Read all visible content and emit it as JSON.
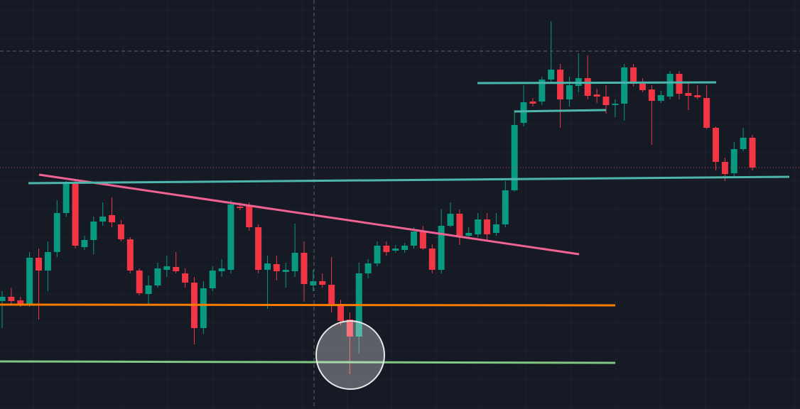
{
  "chart_data": {
    "type": "candlestick",
    "up_color": "#089981",
    "down_color": "#f23645",
    "ylim": [
      0,
      576
    ],
    "grid": true,
    "open": [
      152,
      158,
      153,
      146,
      213,
      195,
      221,
      276,
      318,
      228,
      238,
      264,
      273,
      260,
      239,
      195,
      162,
      174,
      196,
      200,
      191,
      178,
      114,
      170,
      194,
      196,
      285,
      286,
      256,
      196,
      204,
      193,
      194,
      220,
      174,
      180,
      175,
      148,
      126,
      102,
      191,
      205,
      230,
      223,
      224,
      230,
      250,
      226,
      196,
      258,
      275,
      244,
      246,
      267,
      248,
      260,
      308,
      403,
      433,
      433,
      464,
      478,
      436,
      455,
      466,
      443,
      440,
      428,
      430,
      481,
      458,
      450,
      434,
      440,
      472,
      445,
      442,
      438,
      396,
      348,
      332,
      366,
      382
    ],
    "high": [
      166,
      171,
      158,
      221,
      226,
      236,
      294,
      321,
      324,
      244,
      271,
      291,
      298,
      266,
      242,
      198,
      188,
      206,
      216,
      221,
      198,
      186,
      180,
      201,
      211,
      294,
      291,
      291,
      260,
      216,
      216,
      206,
      261,
      236,
      196,
      191,
      214,
      154,
      136,
      206,
      211,
      236,
      236,
      231,
      234,
      256,
      258,
      232,
      281,
      291,
      281,
      256,
      276,
      276,
      276,
      321,
      421,
      456,
      438,
      468,
      546,
      486,
      468,
      501,
      498,
      451,
      456,
      436,
      486,
      486,
      466,
      456,
      448,
      476,
      476,
      461,
      456,
      456,
      398,
      354,
      376,
      396,
      386
    ],
    "low": [
      114,
      146,
      144,
      144,
      126,
      166,
      214,
      271,
      226,
      224,
      218,
      258,
      256,
      236,
      191,
      160,
      148,
      171,
      186,
      191,
      171,
      91,
      106,
      166,
      186,
      191,
      280,
      251,
      191,
      141,
      181,
      171,
      186,
      151,
      166,
      171,
      136,
      118,
      49,
      78,
      184,
      201,
      216,
      220,
      220,
      226,
      224,
      191,
      191,
      256,
      231,
      241,
      242,
      236,
      244,
      256,
      306,
      398,
      426,
      428,
      458,
      396,
      426,
      446,
      436,
      431,
      416,
      411,
      406,
      454,
      446,
      372,
      431,
      436,
      436,
      421,
      436,
      394,
      336,
      321,
      328,
      363,
      336
    ],
    "close": [
      158,
      152,
      148,
      213,
      195,
      221,
      276,
      318,
      230,
      238,
      264,
      271,
      263,
      239,
      195,
      163,
      174,
      198,
      201,
      194,
      178,
      114,
      170,
      195,
      198,
      288,
      283,
      256,
      196,
      205,
      194,
      196,
      220,
      176,
      180,
      175,
      148,
      124,
      102,
      191,
      205,
      230,
      221,
      226,
      230,
      250,
      226,
      196,
      258,
      275,
      244,
      248,
      267,
      246,
      260,
      308,
      400,
      432,
      430,
      464,
      478,
      436,
      456,
      466,
      441,
      440,
      428,
      430,
      481,
      458,
      449,
      434,
      442,
      472,
      444,
      441,
      439,
      396,
      348,
      331,
      366,
      382,
      340
    ]
  }
}
